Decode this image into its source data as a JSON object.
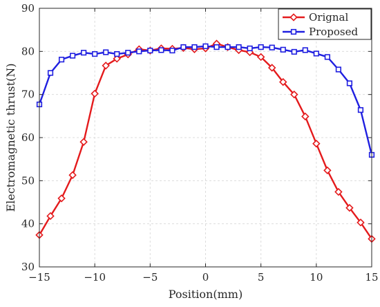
{
  "chart_data": {
    "type": "line",
    "title": "",
    "xlabel": "Position(mm)",
    "ylabel": "Electromagnetic thrust(N)",
    "xlim": [
      -15,
      15
    ],
    "ylim": [
      30,
      90
    ],
    "xticks": [
      -15,
      -10,
      -5,
      0,
      5,
      10,
      15
    ],
    "yticks": [
      30,
      40,
      50,
      60,
      70,
      80,
      90
    ],
    "grid": true,
    "legend_position": "top-right",
    "x": [
      -15,
      -14,
      -13,
      -12,
      -11,
      -10,
      -9,
      -8,
      -7,
      -6,
      -5,
      -4,
      -3,
      -2,
      -1,
      0,
      1,
      2,
      3,
      4,
      5,
      6,
      7,
      8,
      9,
      10,
      11,
      12,
      13,
      14,
      15
    ],
    "series": [
      {
        "name": "Orignal",
        "color": "#e41a1c",
        "marker": "diamond",
        "values": [
          37.4,
          41.8,
          45.9,
          51.3,
          59.0,
          70.2,
          76.7,
          78.3,
          79.3,
          80.5,
          80.2,
          80.7,
          80.6,
          80.8,
          80.5,
          80.7,
          81.8,
          81.0,
          80.3,
          79.8,
          78.7,
          76.2,
          72.9,
          70.0,
          64.9,
          58.6,
          52.4,
          47.4,
          43.7,
          40.3,
          36.5
        ]
      },
      {
        "name": "Proposed",
        "color": "#1f1fe0",
        "marker": "square",
        "values": [
          67.7,
          75.0,
          78.1,
          79.0,
          79.7,
          79.4,
          79.8,
          79.4,
          79.7,
          80.0,
          80.2,
          80.3,
          80.2,
          81.0,
          81.0,
          81.2,
          81.0,
          81.0,
          81.0,
          80.7,
          81.0,
          80.9,
          80.4,
          79.9,
          80.3,
          79.5,
          78.7,
          75.8,
          72.6,
          66.4,
          56.0
        ]
      }
    ]
  },
  "colors": {
    "axis": "#262626",
    "grid": "#dcdcdc",
    "background": "#ffffff"
  }
}
